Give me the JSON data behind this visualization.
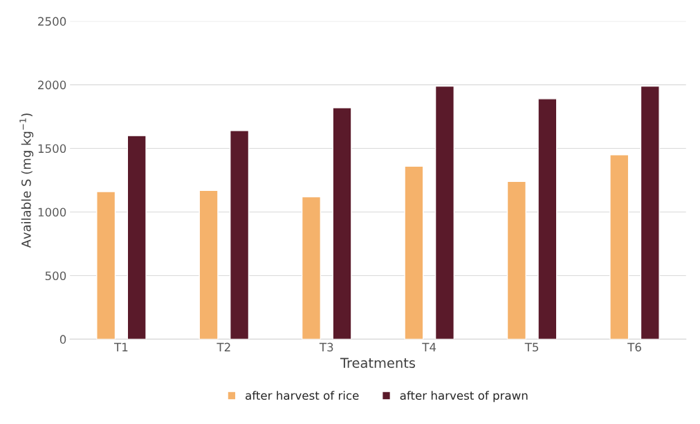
{
  "chart_data": {
    "type": "bar",
    "xlabel": "Treatments",
    "ylabel": "Available S (mg kg$^{−1}$)",
    "categories": [
      "T1",
      "T2",
      "T3",
      "T4",
      "T5",
      "T6"
    ],
    "series": [
      {
        "name": "after harvest of rice",
        "color": "#f5b26b",
        "values": [
          1160,
          1170,
          1120,
          1360,
          1240,
          1450
        ]
      },
      {
        "name": "after harvest of prawn",
        "color": "#5a1a2a",
        "values": [
          1600,
          1640,
          1820,
          1990,
          1890,
          1990
        ]
      }
    ],
    "ylim": [
      0,
      2500
    ],
    "yticks": [
      0,
      500,
      1000,
      1500,
      2000,
      2500
    ],
    "grid": "y",
    "legend": "bottom"
  }
}
